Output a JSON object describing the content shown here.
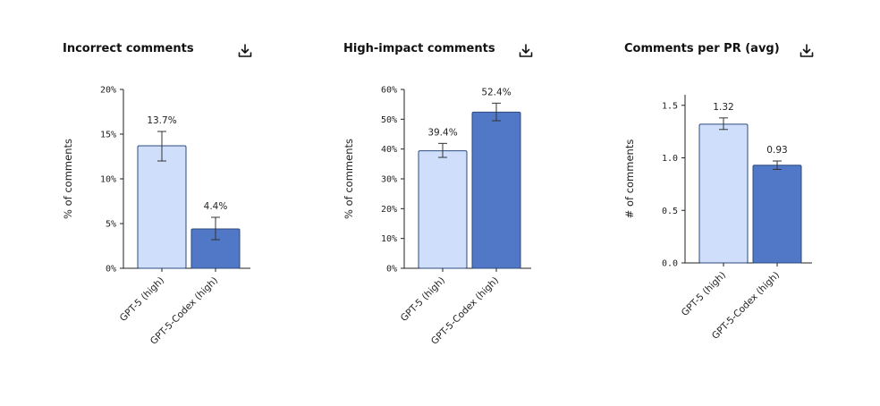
{
  "colors": {
    "series_light": "#cfdffb",
    "series_dark": "#5078c6",
    "bar_stroke": "#2e4a7e",
    "axis": "#222222",
    "error": "#333333"
  },
  "icons": {
    "download": "download-icon"
  },
  "chart_data": [
    {
      "type": "bar",
      "title": "Incorrect comments",
      "ylabel": "% of comments",
      "categories": [
        "GPT-5 (high)",
        "GPT-5-Codex (high)"
      ],
      "values": [
        13.7,
        4.4
      ],
      "value_labels": [
        "13.7%",
        "4.4%"
      ],
      "error_low": [
        12.0,
        3.2
      ],
      "error_high": [
        15.3,
        5.7
      ],
      "ylim": [
        0,
        20
      ],
      "yticks": [
        0,
        5,
        10,
        15,
        20
      ],
      "ytick_labels": [
        "0%",
        "5%",
        "10%",
        "15%",
        "20%"
      ],
      "grid": false,
      "legend": "none"
    },
    {
      "type": "bar",
      "title": "High-impact comments",
      "ylabel": "% of comments",
      "categories": [
        "GPT-5 (high)",
        "GPT-5-Codex (high)"
      ],
      "values": [
        39.4,
        52.4
      ],
      "value_labels": [
        "39.4%",
        "52.4%"
      ],
      "error_low": [
        37.2,
        49.5
      ],
      "error_high": [
        41.9,
        55.4
      ],
      "ylim": [
        0,
        60
      ],
      "yticks": [
        0,
        10,
        20,
        30,
        40,
        50,
        60
      ],
      "ytick_labels": [
        "0%",
        "10%",
        "20%",
        "30%",
        "40%",
        "50%",
        "60%"
      ],
      "grid": false,
      "legend": "none"
    },
    {
      "type": "bar",
      "title": "Comments per PR (avg)",
      "ylabel": "# of comments",
      "categories": [
        "GPT-5 (high)",
        "GPT-5-Codex (high)"
      ],
      "values": [
        1.32,
        0.93
      ],
      "value_labels": [
        "1.32",
        "0.93"
      ],
      "error_low": [
        1.27,
        0.89
      ],
      "error_high": [
        1.38,
        0.97
      ],
      "ylim": [
        0,
        1.6
      ],
      "yticks": [
        0,
        0.5,
        1.0,
        1.5
      ],
      "ytick_labels": [
        "0.0",
        "0.5",
        "1.0",
        "1.5"
      ],
      "grid": false,
      "legend": "none"
    }
  ]
}
